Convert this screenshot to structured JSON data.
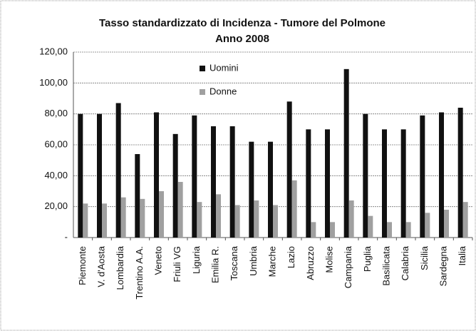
{
  "chart_data": {
    "type": "bar",
    "title": "Tasso standardizzato di Incidenza - Tumore del Polmone",
    "subtitle": "Anno 2008",
    "categories": [
      "Piemonte",
      "V. d'Aosta",
      "Lombardia",
      "Trentino A.A.",
      "Veneto",
      "Friuli VG",
      "Liguria",
      "Emilia R.",
      "Toscana",
      "Umbria",
      "Marche",
      "Lazio",
      "Abruzzo",
      "Molise",
      "Campania",
      "Puglia",
      "Basilicata",
      "Calabria",
      "Sicilia",
      "Sardegna",
      "Italia"
    ],
    "series": [
      {
        "name": "Uomini",
        "color": "#111111",
        "values": [
          80,
          80,
          87,
          54,
          81,
          67,
          79,
          72,
          72,
          62,
          62,
          88,
          70,
          70,
          109,
          80,
          70,
          70,
          79,
          81,
          84
        ]
      },
      {
        "name": "Donne",
        "color": "#a0a0a0",
        "values": [
          22,
          22,
          26,
          25,
          30,
          36,
          23,
          28,
          21,
          24,
          21,
          37,
          10,
          10,
          24,
          14,
          10,
          10,
          16,
          18,
          23
        ]
      }
    ],
    "ylim": [
      0,
      120
    ],
    "yticks": [
      {
        "value": 0,
        "label": "-"
      },
      {
        "value": 20,
        "label": "20,00"
      },
      {
        "value": 40,
        "label": "40,00"
      },
      {
        "value": 60,
        "label": "60,00"
      },
      {
        "value": 80,
        "label": "80,00"
      },
      {
        "value": 100,
        "label": "100,00"
      },
      {
        "value": 120,
        "label": "120,00"
      }
    ],
    "grid": true,
    "legend": "top-left"
  }
}
